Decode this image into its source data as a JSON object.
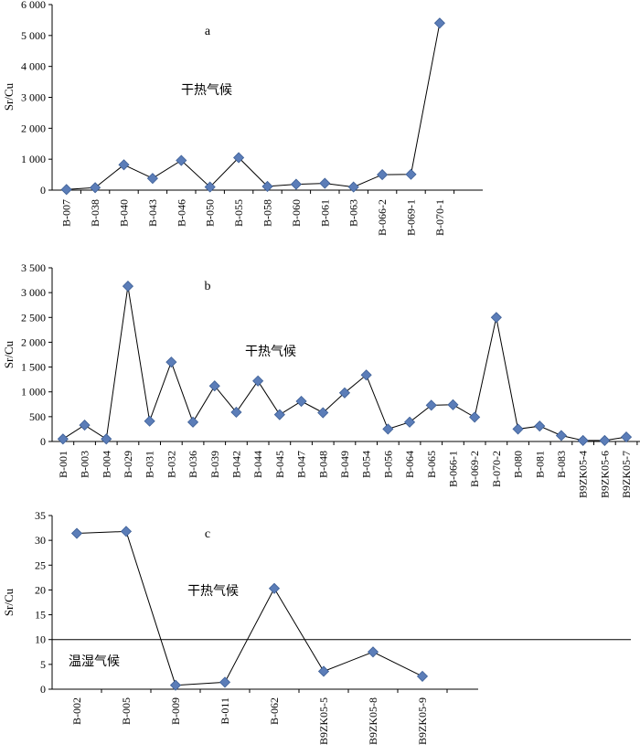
{
  "chart_data": [
    {
      "type": "line",
      "panel": "a",
      "ylabel": "Sr/Cu",
      "ylim": [
        0,
        6000
      ],
      "yticks": [
        0,
        1000,
        2000,
        3000,
        4000,
        5000,
        6000
      ],
      "ytick_labels": [
        "0",
        "1 000",
        "2 000",
        "3 000",
        "4 000",
        "5 000",
        "6 000"
      ],
      "categories": [
        "B-007",
        "B-038",
        "B-040",
        "B-043",
        "B-046",
        "B-050",
        "B-055",
        "B-058",
        "B-060",
        "B-061",
        "B-063",
        "B-066-2",
        "B-069-1",
        "B-070-1"
      ],
      "values": [
        20,
        80,
        820,
        380,
        960,
        100,
        1050,
        120,
        190,
        220,
        100,
        500,
        510,
        5400
      ],
      "annotations": [
        {
          "text": "干热气候"
        }
      ],
      "threshold": null
    },
    {
      "type": "line",
      "panel": "b",
      "ylabel": "Sr/Cu",
      "ylim": [
        0,
        3500
      ],
      "yticks": [
        0,
        500,
        1000,
        1500,
        2000,
        2500,
        3000,
        3500
      ],
      "ytick_labels": [
        "0",
        "500",
        "1 000",
        "1 500",
        "2 000",
        "2 500",
        "3 000",
        "3 500"
      ],
      "categories": [
        "B-001",
        "B-003",
        "B-004",
        "B-029",
        "B-031",
        "B-032",
        "B-036",
        "B-039",
        "B-042",
        "B-044",
        "B-045",
        "B-047",
        "B-048",
        "B-049",
        "B-054",
        "B-056",
        "B-064",
        "B-065",
        "B-066-1",
        "B-069-2",
        "B-070-2",
        "B-080",
        "B-081",
        "B-083",
        "B9ZK05-4",
        "B9ZK05-6",
        "B9ZK05-7"
      ],
      "values": [
        50,
        330,
        50,
        3130,
        410,
        1600,
        390,
        1120,
        590,
        1220,
        540,
        810,
        580,
        980,
        1340,
        250,
        390,
        730,
        740,
        490,
        2500,
        250,
        310,
        120,
        20,
        20,
        90
      ],
      "annotations": [
        {
          "text": "干热气候"
        }
      ],
      "threshold": null
    },
    {
      "type": "line",
      "panel": "c",
      "ylabel": "Sr/Cu",
      "ylim": [
        0,
        35
      ],
      "yticks": [
        0,
        5,
        10,
        15,
        20,
        25,
        30,
        35
      ],
      "ytick_labels": [
        "0",
        "5",
        "10",
        "15",
        "20",
        "25",
        "30",
        "35"
      ],
      "categories": [
        "B-002",
        "B-005",
        "B-009",
        "B-011",
        "B-062",
        "B9ZK05-5",
        "B9ZK05-8",
        "B9ZK05-9"
      ],
      "values": [
        31.4,
        31.8,
        0.8,
        1.4,
        20.3,
        3.6,
        7.5,
        2.6
      ],
      "annotations": [
        {
          "text": "干热气候"
        },
        {
          "text": "温湿气候"
        }
      ],
      "threshold": 10
    }
  ]
}
